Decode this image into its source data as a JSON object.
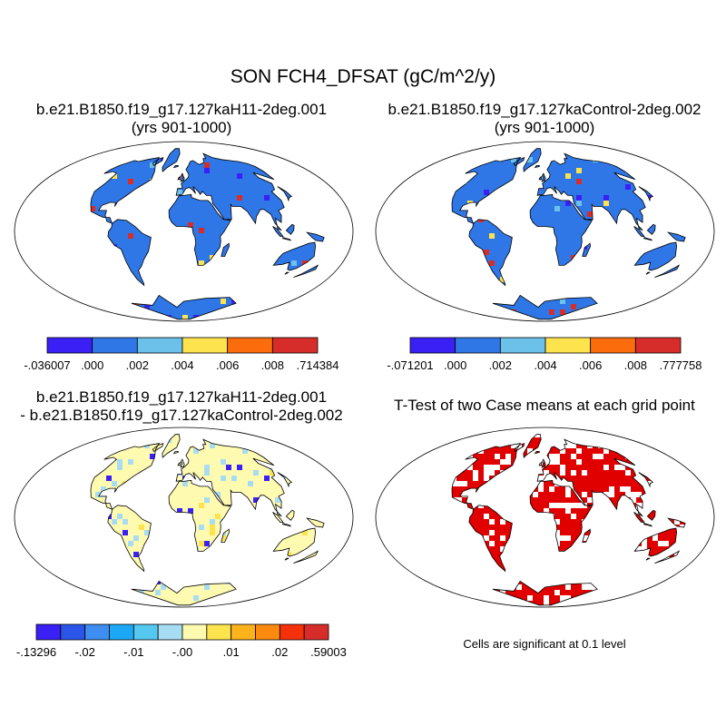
{
  "main_title": "SON FCH4_DFSAT (gC/m^2/y)",
  "panels": [
    {
      "id": "case1",
      "title_lines": [
        "b.e21.B1850.f19_g17.127kaH11-2deg.001",
        "(yrs 901-1000)"
      ],
      "land_color": "#2f77e6",
      "colorbar": {
        "colors": [
          "#3a20f5",
          "#2f77e6",
          "#6cc1ea",
          "#fde34e",
          "#fb6c0d",
          "#d62d2a"
        ],
        "labels": [
          "-.036007",
          ".000",
          ".002",
          ".004",
          ".006",
          ".008",
          ".714384"
        ]
      }
    },
    {
      "id": "case2",
      "title_lines": [
        "b.e21.B1850.f19_g17.127kaControl-2deg.002",
        "(yrs 901-1000)"
      ],
      "land_color": "#2f77e6",
      "colorbar": {
        "colors": [
          "#3a20f5",
          "#2f77e6",
          "#6cc1ea",
          "#fde34e",
          "#fb6c0d",
          "#d62d2a"
        ],
        "labels": [
          "-.071201",
          ".000",
          ".002",
          ".004",
          ".006",
          ".008",
          ".777758"
        ]
      }
    },
    {
      "id": "difference",
      "title_lines": [
        "b.e21.B1850.f19_g17.127kaH11-2deg.001",
        "- b.e21.B1850.f19_g17.127kaControl-2deg.002"
      ],
      "land_color": "#fefab0",
      "colorbar": {
        "colors": [
          "#3a20f5",
          "#2a55e8",
          "#3d8ef0",
          "#1ca8f5",
          "#56c8f0",
          "#a8dcf2",
          "#fefab0",
          "#fde34e",
          "#fcb31b",
          "#fb8a0e",
          "#f5310c",
          "#d62d2a"
        ],
        "labels": [
          "-.13296",
          "-.02",
          "-.01",
          "-.00",
          ".01",
          ".02",
          ".59003"
        ]
      }
    },
    {
      "id": "ttest",
      "title_lines": [
        "T-Test of two Case means at each grid point"
      ],
      "land_color": "#e00000",
      "note": "Cells are significant at 0.1 level"
    }
  ]
}
